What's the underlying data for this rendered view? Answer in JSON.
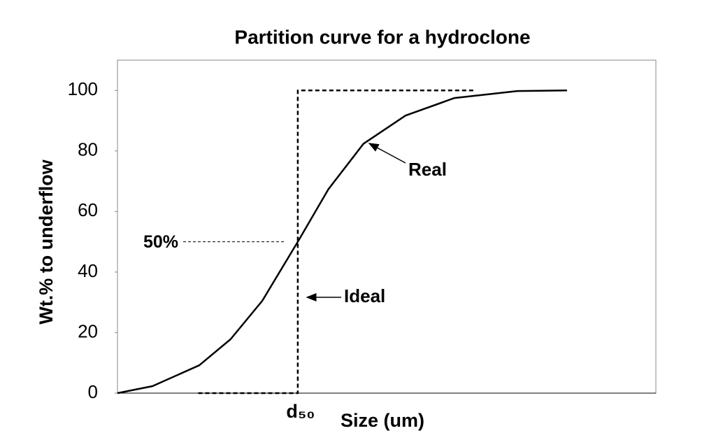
{
  "chart_data": {
    "type": "line",
    "title": "Partition curve for a hydroclone",
    "x_label": "Size (um)",
    "y_label": "Wt.% to underflow",
    "xlim": [
      0,
      100
    ],
    "ylim": [
      0,
      110
    ],
    "yticks": [
      0,
      20,
      40,
      60,
      80,
      100
    ],
    "grid": false,
    "series": [
      {
        "name": "Real",
        "color": "#000000",
        "dashed": false,
        "x": [
          0,
          6.5,
          15.2,
          21,
          26.9,
          33.5,
          39.2,
          45.7,
          53.5,
          62.6,
          74.3,
          83.5
        ],
        "values": [
          0,
          2.3,
          9.2,
          17.8,
          30.5,
          50,
          67.4,
          82.4,
          91.7,
          97.5,
          99.8,
          100
        ]
      },
      {
        "name": "Ideal",
        "color": "#000000",
        "dashed": true,
        "x": [
          15,
          33.5,
          33.5,
          66.2
        ],
        "values": [
          0,
          0,
          100,
          100
        ]
      }
    ],
    "reference_line": {
      "value": 50,
      "label": "50%"
    },
    "d50_label": "d₅₀"
  }
}
